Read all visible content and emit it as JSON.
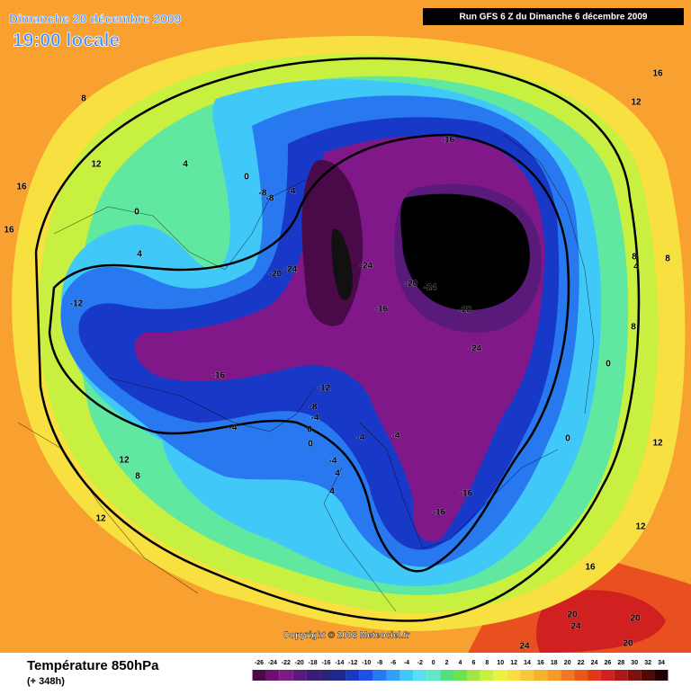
{
  "header": {
    "date": "Dimanche 20 décembre 2009",
    "time": "19:00 locale",
    "run": "Run GFS 6 Z du Dimanche 6 décembre 2009"
  },
  "map": {
    "copyright": "Copyright © 2008 Meteociel.fr",
    "contour_labels": [
      -16,
      0,
      4,
      8,
      12,
      16,
      16,
      0,
      4,
      -8,
      -4,
      -8,
      -24,
      -20,
      -24,
      -20,
      -24,
      -16,
      -28,
      -24,
      -12,
      -16,
      -12,
      -8,
      -4,
      0,
      0,
      -4,
      -4,
      -4,
      -4,
      4,
      4,
      -16,
      -16,
      12,
      8,
      12,
      0,
      0,
      8,
      4,
      8,
      8,
      12,
      12,
      16,
      12,
      16,
      20,
      24,
      20,
      20,
      24
    ]
  },
  "legend": {
    "title": "Température 850hPa",
    "subtitle": "(+ 348h)",
    "scale": [
      -26,
      -24,
      -22,
      -20,
      -18,
      -16,
      -14,
      -12,
      -10,
      -8,
      -6,
      -4,
      -2,
      0,
      2,
      4,
      6,
      8,
      10,
      12,
      14,
      16,
      18,
      20,
      22,
      24,
      26,
      28,
      30,
      32,
      34
    ],
    "colors": [
      "#4a0a4a",
      "#6a1270",
      "#80188a",
      "#5a1a7a",
      "#3a1c78",
      "#2a2478",
      "#1c2a90",
      "#1838c8",
      "#1e50e8",
      "#2878f0",
      "#30a0f8",
      "#40c8f8",
      "#58e0f0",
      "#60e8c8",
      "#50e080",
      "#70e050",
      "#a0e840",
      "#c8f040",
      "#f0f040",
      "#f8e040",
      "#f8c838",
      "#f8b030",
      "#f89828",
      "#f07820",
      "#e85818",
      "#e03818",
      "#d02020",
      "#b01818",
      "#801010",
      "#500808",
      "#200000"
    ]
  }
}
